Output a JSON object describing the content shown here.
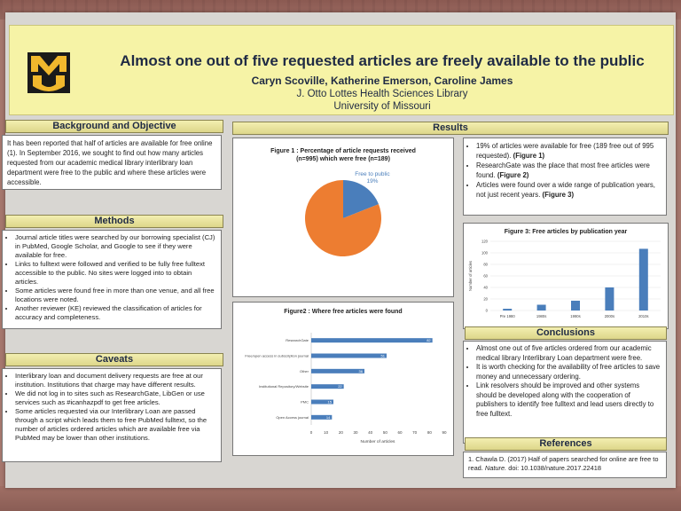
{
  "header": {
    "logo_text": "MU",
    "title": "Almost one out of five requested articles are freely available to the public",
    "authors": "Caryn Scoville, Katherine Emerson, Caroline James",
    "affiliation_1": "J. Otto Lottes Health Sciences Library",
    "affiliation_2": "University of Missouri"
  },
  "sections": {
    "background": {
      "heading": "Background and Objective",
      "text": "It has been reported that half of articles are available for free online (1). In September 2016, we sought to find out how many articles requested from our academic medical library interlibrary loan department were free to the public and where these articles were accessible."
    },
    "methods": {
      "heading": "Methods",
      "items": [
        "Journal article titles were searched by our borrowing specialist (CJ) in PubMed, Google Scholar, and Google to see if they were available for free.",
        "Links to fulltext were followed and verified to be fully free fulltext accessible to the public. No sites were logged into to obtain articles.",
        "Some articles were found free in more than one venue, and all free locations were noted.",
        "Another reviewer (KE) reviewed the classification of articles for accuracy and completeness."
      ]
    },
    "caveats": {
      "heading": "Caveats",
      "items": [
        "Interlibrary loan and document delivery requests are free at our institution. Institutions that charge may have different results.",
        "We did not log in to sites such as ResearchGate, LibGen or use services such as #icanhazpdf to get free articles.",
        "Some articles requested via our Interlibrary Loan are passed through a script which leads them to free PubMed fulltext, so the number of articles ordered articles which are available free via PubMed may be lower than other institutions."
      ]
    },
    "results": {
      "heading": "Results",
      "items": [
        {
          "text": "19% of articles were available for free (189 free out of 995 requested).",
          "ref": "(Figure 1)"
        },
        {
          "text": "ResearchGate was the place that most free articles were found.",
          "ref": "(Figure 2)"
        },
        {
          "text": "Articles were found over a wide range of publication years, not just recent years.",
          "ref": "(Figure 3)"
        }
      ]
    },
    "conclusions": {
      "heading": "Conclusions",
      "items": [
        "Almost one out of five articles ordered from our academic medical library Interlibrary Loan department were free.",
        "It is worth checking for the availability of free articles to save money and unnecessary ordering.",
        "Link resolvers should be improved and other systems should be developed along with the cooperation of publishers to identify free fulltext and lead users directly to free fulltext."
      ]
    },
    "references": {
      "heading": "References",
      "text_before": "1. Chawla D. (2017) Half of papers searched for online are free to read. ",
      "journal": "Nature.",
      "text_after": " doi: 10.1038/nature.2017.22418"
    }
  },
  "chart_data": [
    {
      "type": "pie",
      "title_line1": "Figure 1 : Percentage of article requests received",
      "title_line2": "(n=995) which were free (n=189)",
      "slices": [
        {
          "label": "Free to public",
          "value": 19,
          "value_label": "19%",
          "color": "#4a7ebb"
        },
        {
          "label": "",
          "value": 81,
          "value_label": "",
          "color": "#ed7d31"
        }
      ]
    },
    {
      "type": "bar",
      "orientation": "horizontal",
      "title": "Figure2 : Where free articles were found",
      "categories": [
        "ResearchGate",
        "Free/open access in subscription journal",
        "Other",
        "Institutional Repository/Website",
        "PMC",
        "Open Access journal"
      ],
      "values": [
        82,
        51,
        36,
        22,
        15,
        14
      ],
      "xlabel": "Number of articles",
      "xlim": [
        0,
        90
      ],
      "xticks": [
        0,
        10,
        20,
        30,
        40,
        50,
        60,
        70,
        80,
        90
      ],
      "color": "#4a7ebb"
    },
    {
      "type": "bar",
      "title": "Figure 3: Free articles by publication year",
      "categories": [
        "Pre 1980",
        "1980s",
        "1990s",
        "2000s",
        "2010s"
      ],
      "values": [
        3,
        10,
        17,
        40,
        107
      ],
      "ylabel": "Number of articles",
      "ylim": [
        0,
        120
      ],
      "yticks": [
        0,
        20,
        40,
        60,
        80,
        100,
        120
      ],
      "color": "#4a7ebb"
    }
  ]
}
